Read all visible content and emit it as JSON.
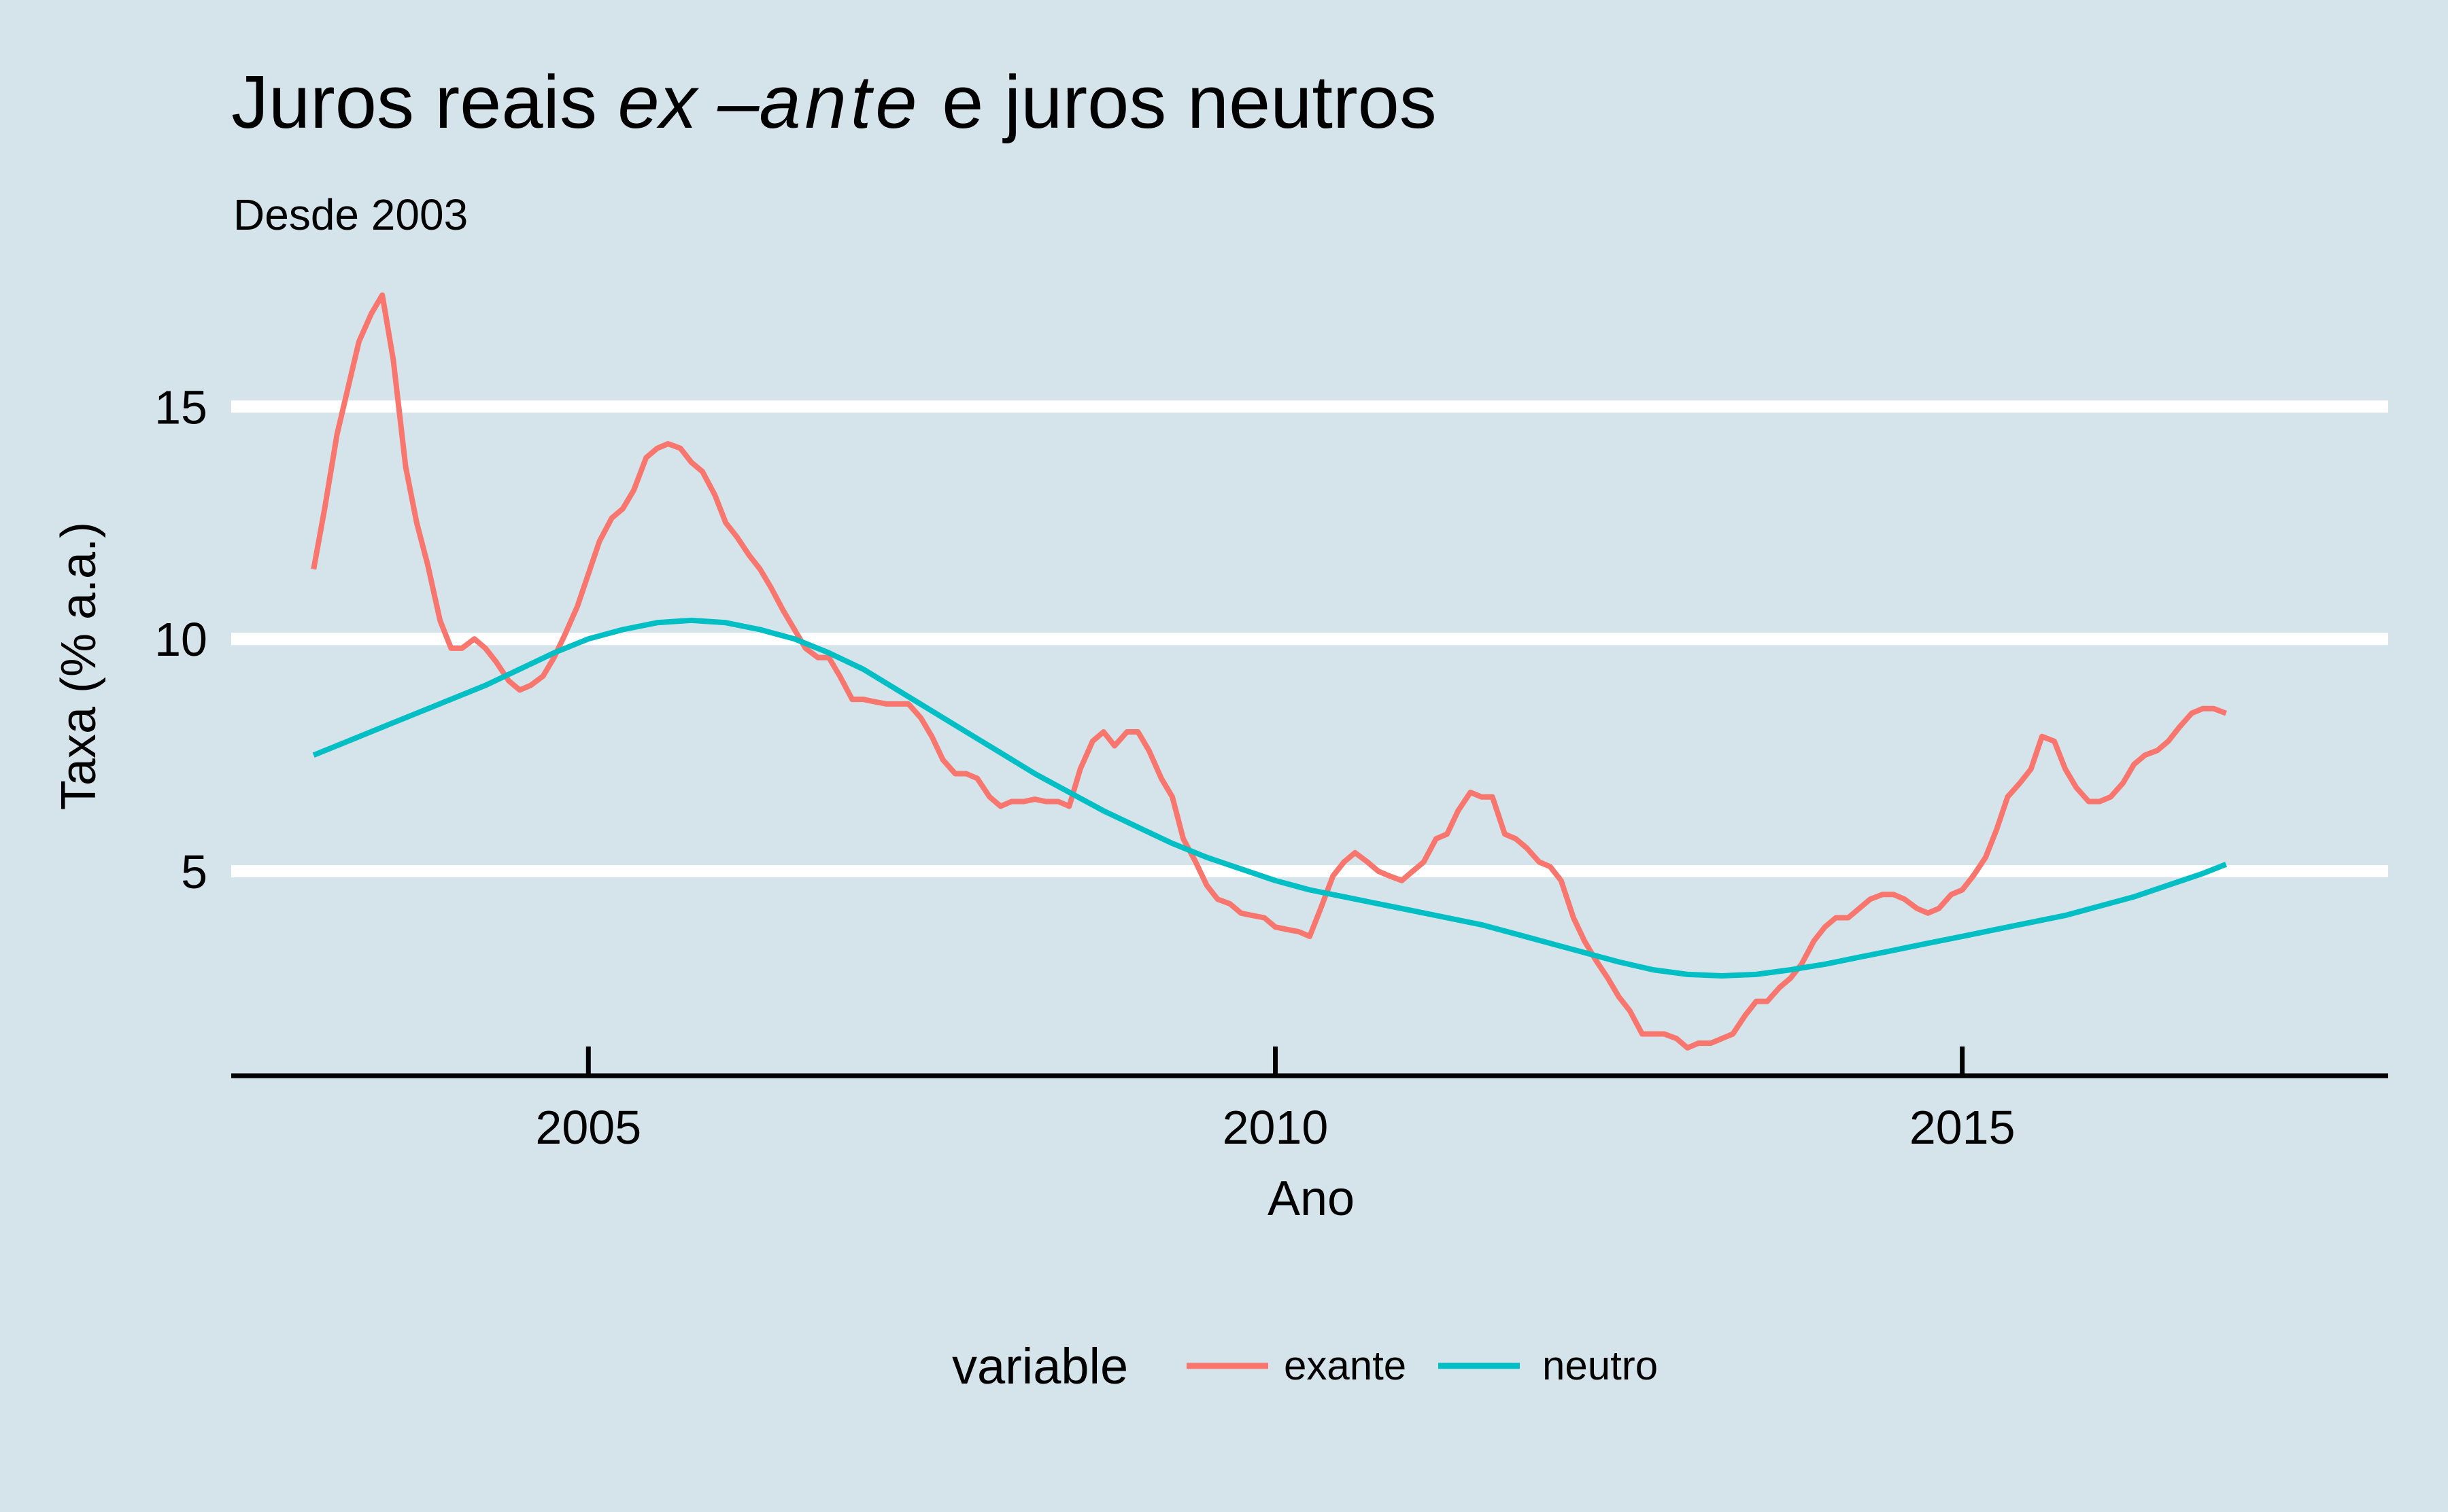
{
  "chart_data": {
    "type": "line",
    "title_parts": [
      "Juros reais ",
      "ex",
      " –",
      "ante",
      " e juros neutros"
    ],
    "subtitle": "Desde 2003",
    "xlabel": "Ano",
    "ylabel": "Taxa (% a.a.)",
    "xlim": [
      2002.4,
      2018.1
    ],
    "ylim": [
      0.6,
      17.9
    ],
    "x_ticks": [
      2005,
      2010,
      2015
    ],
    "x_tick_labels": [
      "2005",
      "2010",
      "2015"
    ],
    "y_ticks": [
      5,
      10,
      15
    ],
    "y_tick_labels": [
      "5",
      "10",
      "15"
    ],
    "grid": "horizontal-major",
    "legend": {
      "title": "variable",
      "position": "bottom"
    },
    "series": [
      {
        "name": "exante",
        "color": "#f8766d",
        "points": [
          [
            2003.0,
            11.5
          ],
          [
            2003.08,
            12.8
          ],
          [
            2003.17,
            14.4
          ],
          [
            2003.25,
            15.4
          ],
          [
            2003.33,
            16.4
          ],
          [
            2003.42,
            17.0
          ],
          [
            2003.5,
            17.4
          ],
          [
            2003.58,
            16.0
          ],
          [
            2003.67,
            13.7
          ],
          [
            2003.75,
            12.5
          ],
          [
            2003.83,
            11.6
          ],
          [
            2003.92,
            10.4
          ],
          [
            2004.0,
            9.8
          ],
          [
            2004.08,
            9.8
          ],
          [
            2004.17,
            10.0
          ],
          [
            2004.25,
            9.8
          ],
          [
            2004.33,
            9.5
          ],
          [
            2004.42,
            9.1
          ],
          [
            2004.5,
            8.9
          ],
          [
            2004.58,
            9.0
          ],
          [
            2004.67,
            9.2
          ],
          [
            2004.75,
            9.6
          ],
          [
            2004.83,
            10.1
          ],
          [
            2004.92,
            10.7
          ],
          [
            2005.0,
            11.4
          ],
          [
            2005.08,
            12.1
          ],
          [
            2005.17,
            12.6
          ],
          [
            2005.25,
            12.8
          ],
          [
            2005.33,
            13.2
          ],
          [
            2005.42,
            13.9
          ],
          [
            2005.5,
            14.1
          ],
          [
            2005.58,
            14.2
          ],
          [
            2005.67,
            14.1
          ],
          [
            2005.75,
            13.8
          ],
          [
            2005.83,
            13.6
          ],
          [
            2005.92,
            13.1
          ],
          [
            2006.0,
            12.5
          ],
          [
            2006.08,
            12.2
          ],
          [
            2006.17,
            11.8
          ],
          [
            2006.25,
            11.5
          ],
          [
            2006.33,
            11.1
          ],
          [
            2006.42,
            10.6
          ],
          [
            2006.5,
            10.2
          ],
          [
            2006.58,
            9.8
          ],
          [
            2006.67,
            9.6
          ],
          [
            2006.75,
            9.6
          ],
          [
            2006.83,
            9.2
          ],
          [
            2006.92,
            8.7
          ],
          [
            2007.0,
            8.7
          ],
          [
            2007.08,
            8.65
          ],
          [
            2007.17,
            8.6
          ],
          [
            2007.25,
            8.6
          ],
          [
            2007.33,
            8.6
          ],
          [
            2007.42,
            8.3
          ],
          [
            2007.5,
            7.9
          ],
          [
            2007.58,
            7.4
          ],
          [
            2007.67,
            7.1
          ],
          [
            2007.75,
            7.1
          ],
          [
            2007.83,
            7.0
          ],
          [
            2007.92,
            6.6
          ],
          [
            2008.0,
            6.4
          ],
          [
            2008.08,
            6.5
          ],
          [
            2008.17,
            6.5
          ],
          [
            2008.25,
            6.55
          ],
          [
            2008.33,
            6.5
          ],
          [
            2008.42,
            6.5
          ],
          [
            2008.5,
            6.4
          ],
          [
            2008.58,
            7.2
          ],
          [
            2008.67,
            7.8
          ],
          [
            2008.75,
            8.0
          ],
          [
            2008.83,
            7.7
          ],
          [
            2008.92,
            8.0
          ],
          [
            2009.0,
            8.0
          ],
          [
            2009.08,
            7.6
          ],
          [
            2009.17,
            7.0
          ],
          [
            2009.25,
            6.6
          ],
          [
            2009.33,
            5.7
          ],
          [
            2009.42,
            5.2
          ],
          [
            2009.5,
            4.7
          ],
          [
            2009.58,
            4.4
          ],
          [
            2009.67,
            4.3
          ],
          [
            2009.75,
            4.1
          ],
          [
            2009.83,
            4.05
          ],
          [
            2009.92,
            4.0
          ],
          [
            2010.0,
            3.8
          ],
          [
            2010.08,
            3.75
          ],
          [
            2010.17,
            3.7
          ],
          [
            2010.25,
            3.6
          ],
          [
            2010.33,
            4.2
          ],
          [
            2010.42,
            4.9
          ],
          [
            2010.5,
            5.2
          ],
          [
            2010.58,
            5.4
          ],
          [
            2010.67,
            5.2
          ],
          [
            2010.75,
            5.0
          ],
          [
            2010.83,
            4.9
          ],
          [
            2010.92,
            4.8
          ],
          [
            2011.0,
            5.0
          ],
          [
            2011.08,
            5.2
          ],
          [
            2011.17,
            5.7
          ],
          [
            2011.25,
            5.8
          ],
          [
            2011.33,
            6.3
          ],
          [
            2011.42,
            6.7
          ],
          [
            2011.5,
            6.6
          ],
          [
            2011.58,
            6.6
          ],
          [
            2011.67,
            5.8
          ],
          [
            2011.75,
            5.7
          ],
          [
            2011.83,
            5.5
          ],
          [
            2011.92,
            5.2
          ],
          [
            2012.0,
            5.1
          ],
          [
            2012.08,
            4.8
          ],
          [
            2012.17,
            4.0
          ],
          [
            2012.25,
            3.5
          ],
          [
            2012.33,
            3.1
          ],
          [
            2012.42,
            2.7
          ],
          [
            2012.5,
            2.3
          ],
          [
            2012.58,
            2.0
          ],
          [
            2012.67,
            1.5
          ],
          [
            2012.75,
            1.5
          ],
          [
            2012.83,
            1.5
          ],
          [
            2012.92,
            1.4
          ],
          [
            2013.0,
            1.2
          ],
          [
            2013.08,
            1.3
          ],
          [
            2013.17,
            1.3
          ],
          [
            2013.25,
            1.4
          ],
          [
            2013.33,
            1.5
          ],
          [
            2013.42,
            1.9
          ],
          [
            2013.5,
            2.2
          ],
          [
            2013.58,
            2.2
          ],
          [
            2013.67,
            2.5
          ],
          [
            2013.75,
            2.7
          ],
          [
            2013.83,
            3.0
          ],
          [
            2013.92,
            3.5
          ],
          [
            2014.0,
            3.8
          ],
          [
            2014.08,
            4.0
          ],
          [
            2014.17,
            4.0
          ],
          [
            2014.25,
            4.2
          ],
          [
            2014.33,
            4.4
          ],
          [
            2014.42,
            4.5
          ],
          [
            2014.5,
            4.5
          ],
          [
            2014.58,
            4.4
          ],
          [
            2014.67,
            4.2
          ],
          [
            2014.75,
            4.1
          ],
          [
            2014.83,
            4.2
          ],
          [
            2014.92,
            4.5
          ],
          [
            2015.0,
            4.6
          ],
          [
            2015.08,
            4.9
          ],
          [
            2015.17,
            5.3
          ],
          [
            2015.25,
            5.9
          ],
          [
            2015.33,
            6.6
          ],
          [
            2015.42,
            6.9
          ],
          [
            2015.5,
            7.2
          ],
          [
            2015.58,
            7.9
          ],
          [
            2015.67,
            7.8
          ],
          [
            2015.75,
            7.2
          ],
          [
            2015.83,
            6.8
          ],
          [
            2015.92,
            6.5
          ],
          [
            2016.0,
            6.5
          ],
          [
            2016.08,
            6.6
          ],
          [
            2016.17,
            6.9
          ],
          [
            2016.25,
            7.3
          ],
          [
            2016.33,
            7.5
          ],
          [
            2016.42,
            7.6
          ],
          [
            2016.5,
            7.8
          ],
          [
            2016.58,
            8.1
          ],
          [
            2016.67,
            8.4
          ],
          [
            2016.75,
            8.5
          ],
          [
            2016.83,
            8.5
          ],
          [
            2016.92,
            8.4
          ]
        ]
      },
      {
        "name": "neutro",
        "color": "#00bfc4",
        "points": [
          [
            2003.0,
            7.5
          ],
          [
            2003.25,
            7.8
          ],
          [
            2003.5,
            8.1
          ],
          [
            2003.75,
            8.4
          ],
          [
            2004.0,
            8.7
          ],
          [
            2004.25,
            9.0
          ],
          [
            2004.5,
            9.35
          ],
          [
            2004.75,
            9.7
          ],
          [
            2005.0,
            10.0
          ],
          [
            2005.25,
            10.2
          ],
          [
            2005.5,
            10.35
          ],
          [
            2005.75,
            10.4
          ],
          [
            2006.0,
            10.35
          ],
          [
            2006.25,
            10.2
          ],
          [
            2006.5,
            10.0
          ],
          [
            2006.75,
            9.7
          ],
          [
            2007.0,
            9.35
          ],
          [
            2007.25,
            8.9
          ],
          [
            2007.5,
            8.45
          ],
          [
            2007.75,
            8.0
          ],
          [
            2008.0,
            7.55
          ],
          [
            2008.25,
            7.1
          ],
          [
            2008.5,
            6.7
          ],
          [
            2008.75,
            6.3
          ],
          [
            2009.0,
            5.95
          ],
          [
            2009.25,
            5.6
          ],
          [
            2009.5,
            5.3
          ],
          [
            2009.75,
            5.05
          ],
          [
            2010.0,
            4.8
          ],
          [
            2010.25,
            4.6
          ],
          [
            2010.5,
            4.45
          ],
          [
            2010.75,
            4.3
          ],
          [
            2011.0,
            4.15
          ],
          [
            2011.25,
            4.0
          ],
          [
            2011.5,
            3.85
          ],
          [
            2011.75,
            3.65
          ],
          [
            2012.0,
            3.45
          ],
          [
            2012.25,
            3.25
          ],
          [
            2012.5,
            3.05
          ],
          [
            2012.75,
            2.88
          ],
          [
            2013.0,
            2.78
          ],
          [
            2013.25,
            2.75
          ],
          [
            2013.5,
            2.78
          ],
          [
            2013.75,
            2.88
          ],
          [
            2014.0,
            3.0
          ],
          [
            2014.25,
            3.15
          ],
          [
            2014.5,
            3.3
          ],
          [
            2014.75,
            3.45
          ],
          [
            2015.0,
            3.6
          ],
          [
            2015.25,
            3.75
          ],
          [
            2015.5,
            3.9
          ],
          [
            2015.75,
            4.05
          ],
          [
            2016.0,
            4.25
          ],
          [
            2016.25,
            4.45
          ],
          [
            2016.5,
            4.7
          ],
          [
            2016.75,
            4.95
          ],
          [
            2016.92,
            5.15
          ]
        ]
      }
    ]
  }
}
